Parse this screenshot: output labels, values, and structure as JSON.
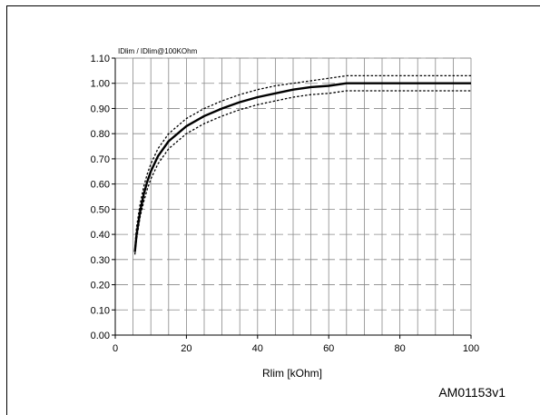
{
  "chart_data": {
    "type": "line",
    "ylabel": "IDlim / IDlim@100KOhm",
    "xlabel": "Rlim [kOhm]",
    "xlim": [
      0,
      100
    ],
    "ylim": [
      0.0,
      1.1
    ],
    "x_ticks": [
      "0",
      "20",
      "40",
      "60",
      "80",
      "100"
    ],
    "y_ticks": [
      "0.00",
      "0.10",
      "0.20",
      "0.30",
      "0.40",
      "0.50",
      "0.60",
      "0.70",
      "0.80",
      "0.90",
      "1.00",
      "1.10"
    ],
    "grid": true,
    "series": [
      {
        "style": "solid",
        "x": [
          5.5,
          6,
          7,
          8,
          9,
          10,
          12,
          15,
          20,
          25,
          30,
          35,
          40,
          45,
          50,
          55,
          60,
          65,
          70,
          80,
          90,
          100
        ],
        "y": [
          0.33,
          0.4,
          0.49,
          0.56,
          0.61,
          0.65,
          0.71,
          0.77,
          0.83,
          0.87,
          0.9,
          0.925,
          0.945,
          0.96,
          0.975,
          0.985,
          0.99,
          1.0,
          1.0,
          1.0,
          1.0,
          1.0
        ]
      },
      {
        "style": "dotted-upper",
        "x": [
          5.5,
          6,
          7,
          8,
          9,
          10,
          12,
          15,
          20,
          25,
          30,
          35,
          40,
          45,
          50,
          55,
          60,
          65,
          70,
          80,
          90,
          100
        ],
        "y": [
          0.35,
          0.43,
          0.52,
          0.59,
          0.64,
          0.68,
          0.74,
          0.8,
          0.86,
          0.9,
          0.93,
          0.955,
          0.975,
          0.99,
          1.0,
          1.01,
          1.02,
          1.03,
          1.03,
          1.03,
          1.03,
          1.03
        ]
      },
      {
        "style": "dotted-lower",
        "x": [
          5.5,
          6,
          7,
          8,
          9,
          10,
          12,
          15,
          20,
          25,
          30,
          35,
          40,
          45,
          50,
          55,
          60,
          65,
          70,
          80,
          90,
          100
        ],
        "y": [
          0.32,
          0.38,
          0.47,
          0.53,
          0.58,
          0.62,
          0.68,
          0.74,
          0.8,
          0.84,
          0.87,
          0.895,
          0.915,
          0.93,
          0.945,
          0.955,
          0.96,
          0.97,
          0.97,
          0.97,
          0.97,
          0.97
        ]
      }
    ]
  },
  "figure_id": "AM01153v1",
  "colors": {
    "line": "#000000",
    "grid": "#888888",
    "background": "#ffffff"
  }
}
